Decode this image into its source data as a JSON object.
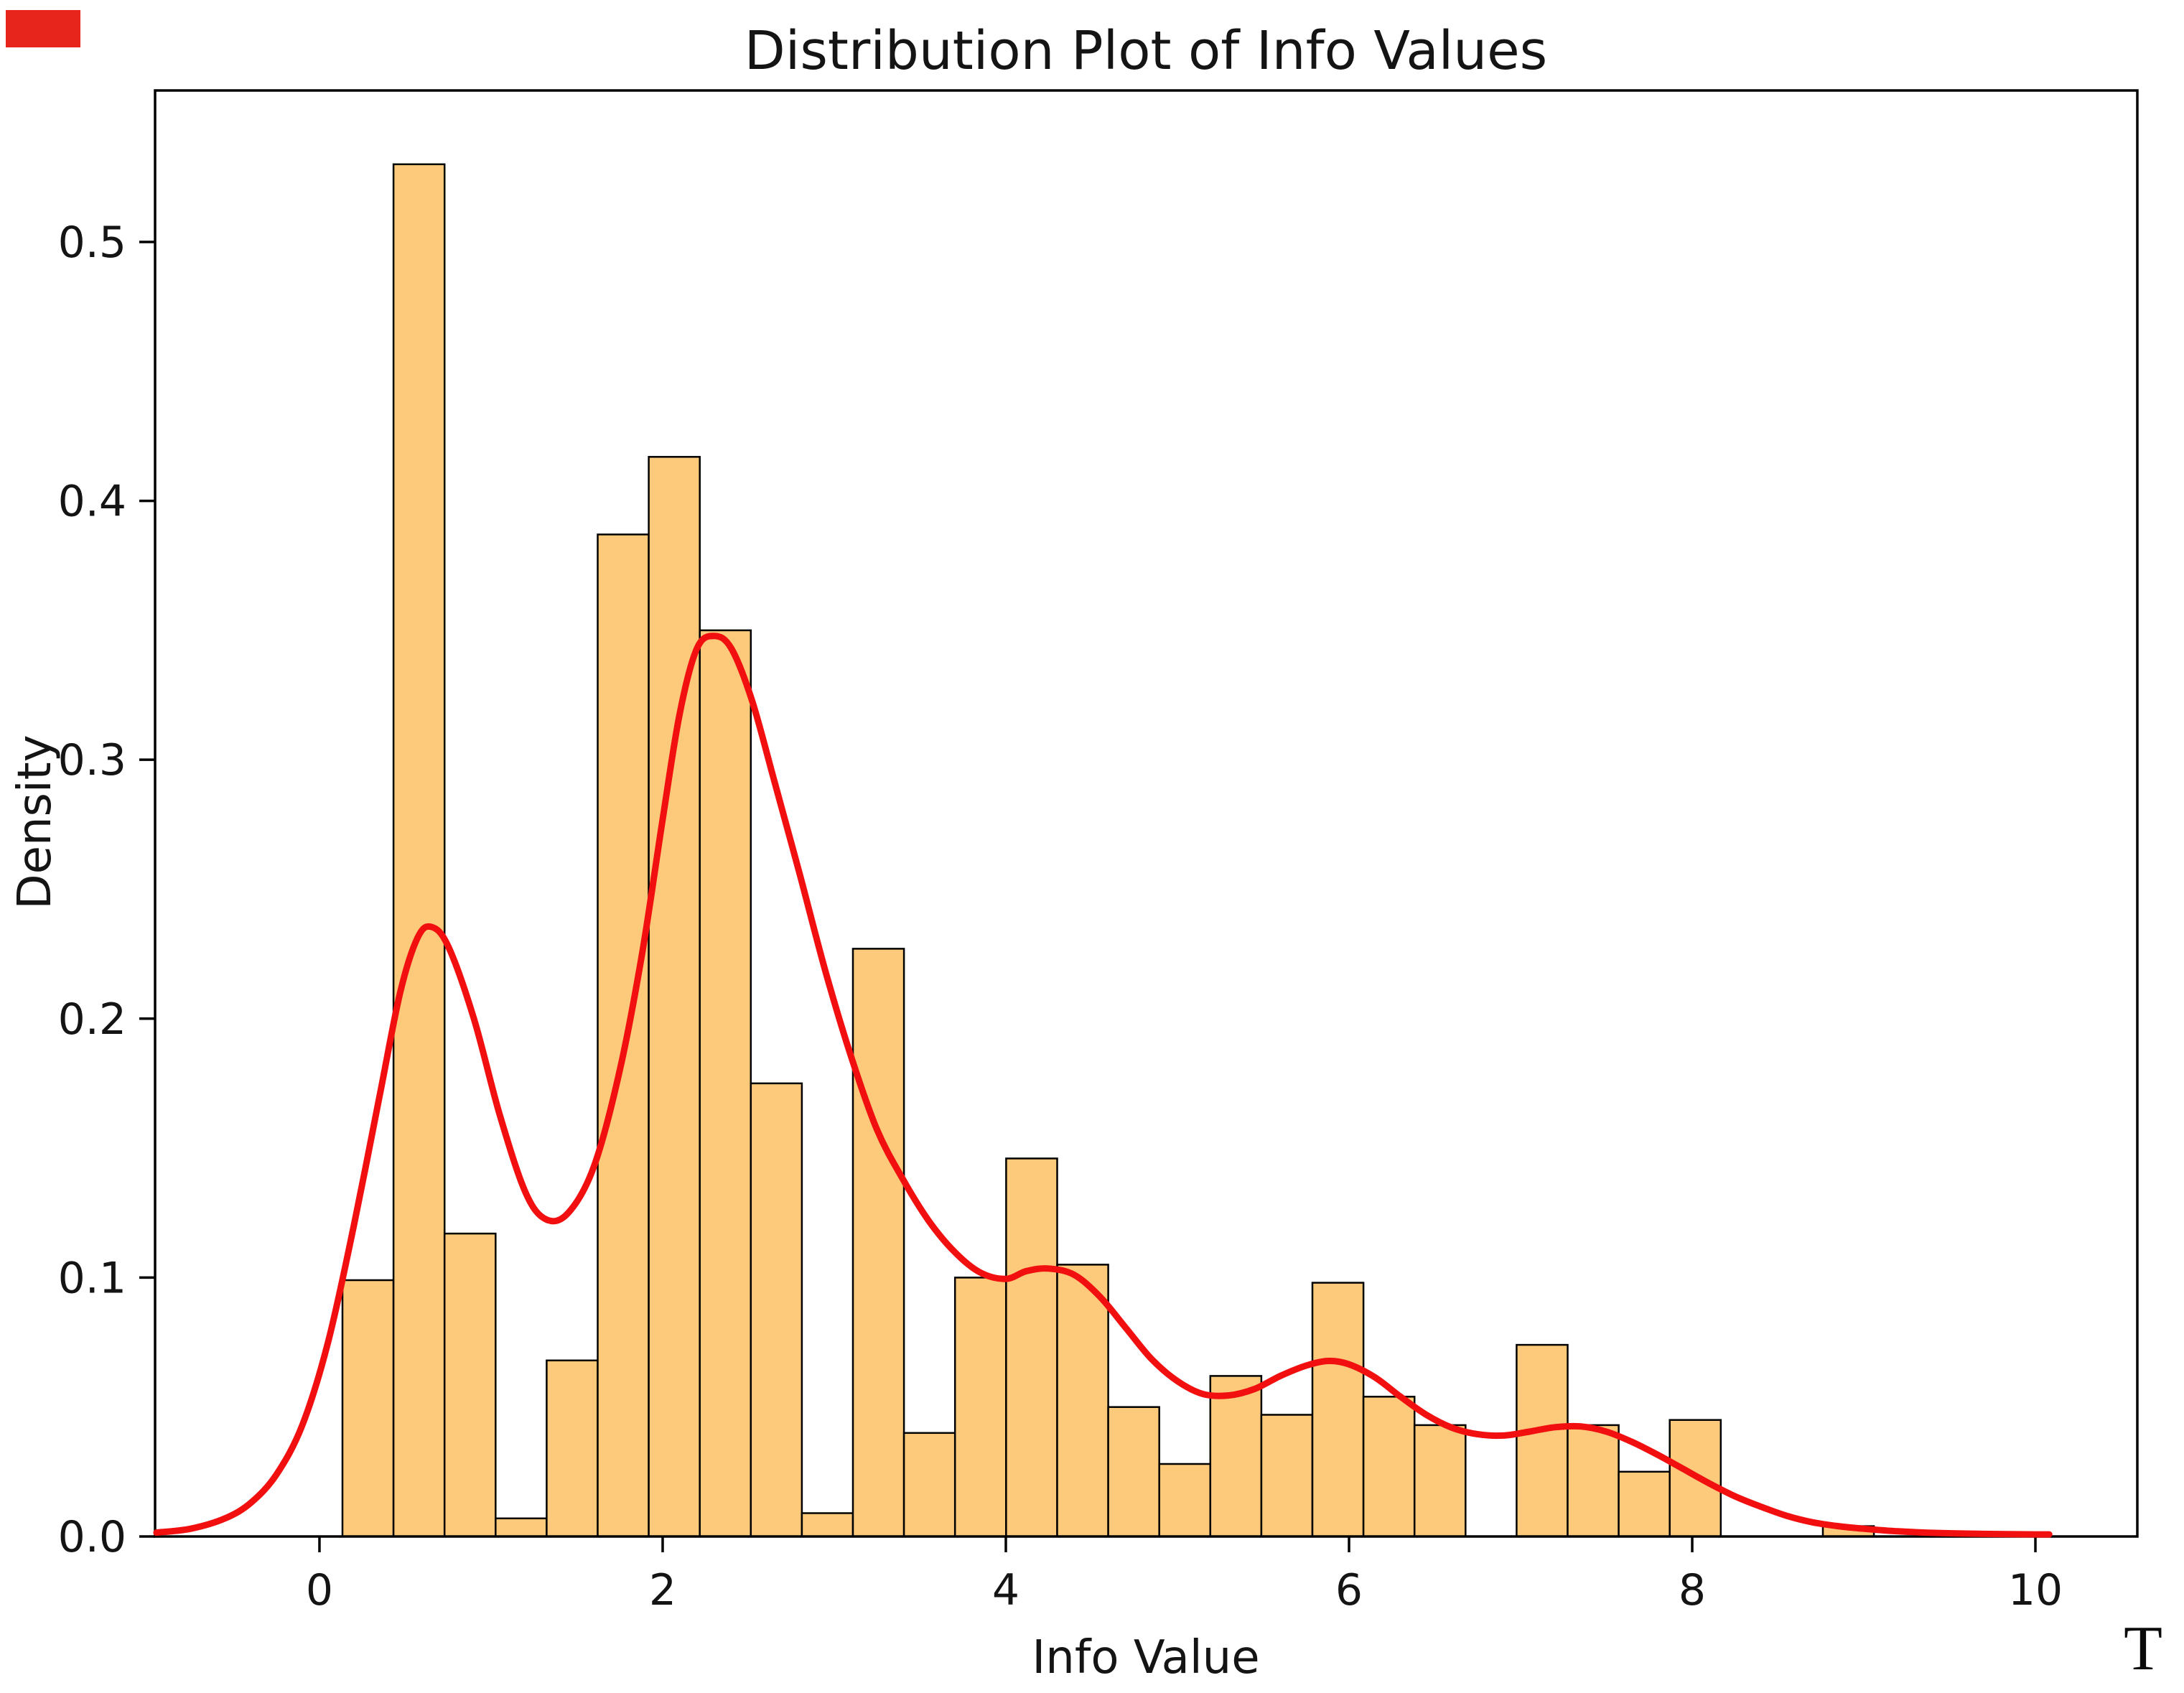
{
  "chart_data": {
    "type": "histogram_kde",
    "title": "Distribution Plot of Info Values",
    "xlabel": "Info Value",
    "ylabel": "Density",
    "xlim": [
      -0.958,
      10.594
    ],
    "ylim": [
      0,
      0.5585
    ],
    "x_ticks": [
      0,
      2,
      4,
      6,
      8,
      10
    ],
    "x_tick_labels": [
      "0",
      "2",
      "4",
      "6",
      "8",
      "10"
    ],
    "y_ticks": [
      0.0,
      0.1,
      0.2,
      0.3,
      0.4,
      0.5
    ],
    "y_tick_labels": [
      "0.0",
      "0.1",
      "0.2",
      "0.3",
      "0.4",
      "0.5"
    ],
    "grid": false,
    "legend": "none",
    "bins": {
      "start": 0.134,
      "width": 0.2975
    },
    "bar_heights": [
      0.099,
      0.53,
      0.117,
      0.007,
      0.068,
      0.387,
      0.417,
      0.35,
      0.175,
      0.009,
      0.227,
      0.04,
      0.1,
      0.146,
      0.105,
      0.05,
      0.028,
      0.062,
      0.047,
      0.098,
      0.054,
      0.043,
      0,
      0.074,
      0.043,
      0.025,
      0.045,
      0,
      0,
      0.004
    ],
    "kde_points": [
      [
        -0.95,
        0.0015
      ],
      [
        -0.75,
        0.003
      ],
      [
        -0.55,
        0.007
      ],
      [
        -0.4,
        0.013
      ],
      [
        -0.25,
        0.024
      ],
      [
        -0.1,
        0.043
      ],
      [
        0.05,
        0.075
      ],
      [
        0.2,
        0.12
      ],
      [
        0.35,
        0.17
      ],
      [
        0.47,
        0.21
      ],
      [
        0.57,
        0.231
      ],
      [
        0.65,
        0.2355
      ],
      [
        0.75,
        0.228
      ],
      [
        0.9,
        0.2
      ],
      [
        1.05,
        0.163
      ],
      [
        1.2,
        0.133
      ],
      [
        1.32,
        0.1225
      ],
      [
        1.45,
        0.125
      ],
      [
        1.6,
        0.143
      ],
      [
        1.75,
        0.18
      ],
      [
        1.88,
        0.225
      ],
      [
        2.0,
        0.277
      ],
      [
        2.1,
        0.318
      ],
      [
        2.2,
        0.343
      ],
      [
        2.3,
        0.3478
      ],
      [
        2.4,
        0.343
      ],
      [
        2.52,
        0.323
      ],
      [
        2.65,
        0.292
      ],
      [
        2.8,
        0.2555
      ],
      [
        2.95,
        0.218
      ],
      [
        3.1,
        0.185
      ],
      [
        3.25,
        0.157
      ],
      [
        3.4,
        0.138
      ],
      [
        3.55,
        0.122
      ],
      [
        3.7,
        0.11
      ],
      [
        3.85,
        0.102
      ],
      [
        4.0,
        0.0995
      ],
      [
        4.12,
        0.1025
      ],
      [
        4.25,
        0.1035
      ],
      [
        4.4,
        0.101
      ],
      [
        4.55,
        0.0925
      ],
      [
        4.7,
        0.0805
      ],
      [
        4.85,
        0.0685
      ],
      [
        5.0,
        0.06
      ],
      [
        5.15,
        0.055
      ],
      [
        5.3,
        0.0545
      ],
      [
        5.45,
        0.057
      ],
      [
        5.6,
        0.062
      ],
      [
        5.75,
        0.066
      ],
      [
        5.88,
        0.0678
      ],
      [
        6.0,
        0.0665
      ],
      [
        6.15,
        0.0615
      ],
      [
        6.3,
        0.054
      ],
      [
        6.45,
        0.047
      ],
      [
        6.6,
        0.042
      ],
      [
        6.75,
        0.0395
      ],
      [
        6.9,
        0.039
      ],
      [
        7.05,
        0.0405
      ],
      [
        7.2,
        0.0422
      ],
      [
        7.35,
        0.0425
      ],
      [
        7.5,
        0.0405
      ],
      [
        7.65,
        0.0365
      ],
      [
        7.8,
        0.0315
      ],
      [
        7.95,
        0.026
      ],
      [
        8.1,
        0.0205
      ],
      [
        8.25,
        0.0155
      ],
      [
        8.4,
        0.0115
      ],
      [
        8.55,
        0.008
      ],
      [
        8.7,
        0.0055
      ],
      [
        8.85,
        0.004
      ],
      [
        9.0,
        0.003
      ],
      [
        9.2,
        0.002
      ],
      [
        9.45,
        0.0013
      ],
      [
        9.7,
        0.001
      ],
      [
        10.0,
        0.0008
      ],
      [
        10.08,
        0.0008
      ]
    ],
    "colors": {
      "bar_fill": "#fcca7a",
      "bar_edge": "#000000",
      "kde_line": "#f10f0f",
      "spine": "#000000"
    }
  },
  "artifacts": {
    "stray_text": "T",
    "corner_marker_color": "#e8251d"
  }
}
